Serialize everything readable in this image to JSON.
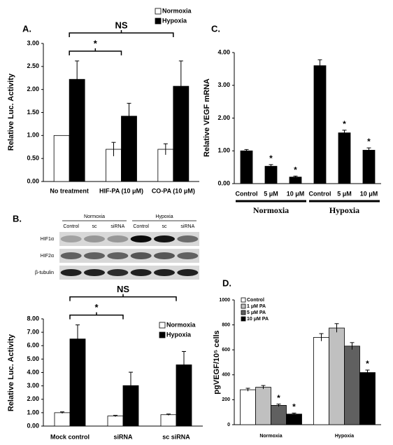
{
  "chart_data": [
    {
      "type": "bar",
      "panel_label": "A.",
      "ylabel": "Relative Luc. Activity",
      "categories": [
        "No treatment",
        "HIF-PA (10 μM)",
        "CO-PA (10 μM)"
      ],
      "series": [
        {
          "name": "Normoxia",
          "color": "#ffffff",
          "values": [
            1.0,
            0.7,
            0.7
          ],
          "errors": [
            null,
            0.15,
            0.12
          ]
        },
        {
          "name": "Hypoxia",
          "color": "#000000",
          "values": [
            2.22,
            1.42,
            2.07
          ],
          "errors": [
            0.4,
            0.28,
            0.55
          ]
        }
      ],
      "ylim": [
        0,
        3
      ],
      "yticks": [
        {
          "value": 0,
          "label": "0.00"
        },
        {
          "value": 0.5,
          "label": "0.50"
        },
        {
          "value": 1,
          "label": "1.00"
        },
        {
          "value": 1.5,
          "label": "1.50"
        },
        {
          "value": 2,
          "label": "2.00"
        },
        {
          "value": 2.5,
          "label": "2.50"
        },
        {
          "value": 3,
          "label": "3.00"
        }
      ],
      "brackets": [
        {
          "label": "*",
          "span": [
            0,
            1
          ]
        },
        {
          "label": "NS",
          "span": [
            0,
            2
          ]
        }
      ]
    },
    {
      "type": "blot",
      "panel_label": "B.",
      "groups": [
        "Normoxia",
        "Hypoxia"
      ],
      "lanes": [
        "Control",
        "sc",
        "siRNA",
        "Control",
        "sc",
        "siRNA"
      ],
      "rows": [
        "HIF1α",
        "HIF2α",
        "β-tubulin"
      ]
    },
    {
      "type": "bar",
      "ylabel": "Relative Luc. Activity",
      "categories": [
        "Mock control",
        "siRNA",
        "sc siRNA"
      ],
      "series": [
        {
          "name": "Normoxia",
          "color": "#ffffff",
          "values": [
            1.0,
            0.75,
            0.85
          ],
          "errors": [
            0.06,
            0.05,
            0.05
          ]
        },
        {
          "name": "Hypoxia",
          "color": "#000000",
          "values": [
            6.5,
            3.02,
            4.57
          ],
          "errors": [
            1.05,
            1.0,
            1.0
          ]
        }
      ],
      "ylim": [
        0,
        8
      ],
      "yticks": [
        {
          "value": 0,
          "label": "0.00"
        },
        {
          "value": 1,
          "label": "1.00"
        },
        {
          "value": 2,
          "label": "2.00"
        },
        {
          "value": 3,
          "label": "3.00"
        },
        {
          "value": 4,
          "label": "4.00"
        },
        {
          "value": 5,
          "label": "5.00"
        },
        {
          "value": 6,
          "label": "6.00"
        },
        {
          "value": 7,
          "label": "7.00"
        },
        {
          "value": 8,
          "label": "8.00"
        }
      ],
      "brackets": [
        {
          "label": "*",
          "span": [
            0,
            1
          ]
        },
        {
          "label": "NS",
          "span": [
            0,
            2
          ]
        }
      ]
    },
    {
      "type": "bar",
      "panel_label": "C.",
      "ylabel": "Relative VEGF mRNA",
      "categories": [
        "Control",
        "5 μM",
        "10 μM",
        "Control",
        "5 μM",
        "10 μM"
      ],
      "values": [
        1.0,
        0.53,
        0.2,
        3.6,
        1.55,
        1.02
      ],
      "errors": [
        0.04,
        0.05,
        0.03,
        0.18,
        0.08,
        0.07
      ],
      "marks": [
        null,
        "*",
        "*",
        null,
        "*",
        "*"
      ],
      "color": "#000000",
      "ylim": [
        0,
        4
      ],
      "yticks": [
        {
          "value": 0,
          "label": "0.00"
        },
        {
          "value": 1,
          "label": "1.00"
        },
        {
          "value": 2,
          "label": "2.00"
        },
        {
          "value": 3,
          "label": "3.00"
        },
        {
          "value": 4,
          "label": "4.00"
        }
      ],
      "groups": [
        {
          "name": "Normoxia",
          "span": [
            0,
            2
          ]
        },
        {
          "name": "Hypoxia",
          "span": [
            3,
            5
          ]
        }
      ]
    },
    {
      "type": "bar",
      "panel_label": "D.",
      "ylabel": "pgVEGF/10⁵ cells",
      "categories": [
        "Normoxia",
        "Hypoxia"
      ],
      "series": [
        {
          "name": "Control",
          "color": "#ffffff",
          "values": [
            280,
            700
          ],
          "errors": [
            12,
            30
          ]
        },
        {
          "name": "1 μM PA",
          "color": "#c0c0c0",
          "values": [
            300,
            775
          ],
          "errors": [
            14,
            35
          ]
        },
        {
          "name": "5 μM PA",
          "color": "#606060",
          "values": [
            155,
            630
          ],
          "errors": [
            10,
            28
          ],
          "marks": [
            "*",
            null
          ]
        },
        {
          "name": "10 μM PA",
          "color": "#000000",
          "values": [
            85,
            418
          ],
          "errors": [
            8,
            20
          ],
          "marks": [
            "*",
            "*"
          ]
        }
      ],
      "ylim": [
        0,
        1000
      ],
      "yticks": [
        0,
        200,
        400,
        600,
        800,
        1000
      ]
    }
  ]
}
